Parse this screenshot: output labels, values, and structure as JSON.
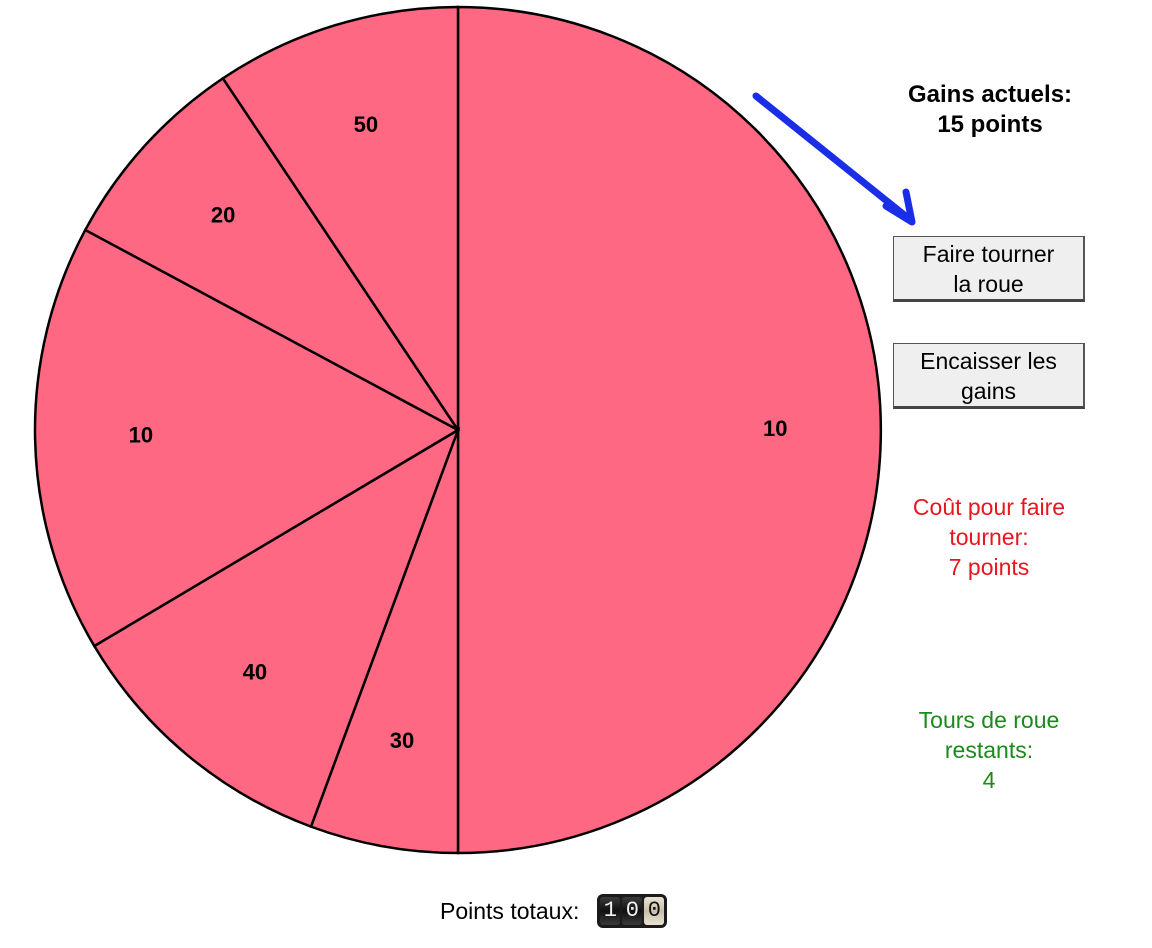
{
  "wheel": {
    "fill_color": "#fe6883",
    "stroke_color": "#000000",
    "segments": [
      {
        "label": "10",
        "fraction": 0.5
      },
      {
        "label": "30",
        "fraction": 0.0565
      },
      {
        "label": "40",
        "fraction": 0.1082
      },
      {
        "label": "10",
        "fraction": 0.1637
      },
      {
        "label": "20",
        "fraction": 0.0778
      },
      {
        "label": "50",
        "fraction": 0.0938
      }
    ]
  },
  "status": {
    "gains_line1": "Gains actuels:",
    "gains_line2": "15 points",
    "cost_line1": "Coût pour faire",
    "cost_line2": "tourner:",
    "cost_line3": "7 points",
    "turns_line1": "Tours de roue",
    "turns_line2": "restants:",
    "turns_line3": "4"
  },
  "buttons": {
    "spin_line1": "Faire tourner",
    "spin_line2": "la roue",
    "cashout_line1": "Encaisser les",
    "cashout_line2": "gains"
  },
  "footer": {
    "total_label": "Points totaux:",
    "digits": [
      "1",
      "0",
      "0"
    ]
  },
  "colors": {
    "accent_arrow": "#1a2ee8",
    "cost_text": "#e8161e",
    "turns_text": "#1a8a1a"
  }
}
